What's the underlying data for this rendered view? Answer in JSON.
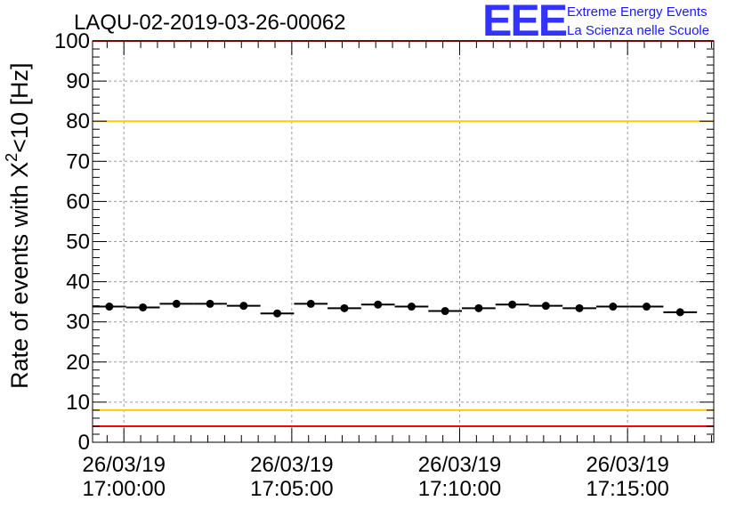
{
  "title": "LAQU-02-2019-03-26-00062",
  "logo": {
    "mark": "EEE",
    "line1": "Extreme Energy Events",
    "line2": "La Scienza nelle Scuole"
  },
  "colors": {
    "limit_red": "#ff0000",
    "limit_yellow": "#ffcc00",
    "logo_blue": "#3333ff",
    "grid": "#9a9a9a",
    "marker": "#000000"
  },
  "chart_data": {
    "type": "scatter",
    "title": "LAQU-02-2019-03-26-00062",
    "ylabel_prefix": "Rate of events with X",
    "ylabel_sup": "2",
    "ylabel_suffix": "<10 [Hz]",
    "ylim": [
      0,
      100
    ],
    "yticks": [
      "0",
      "10",
      "20",
      "30",
      "40",
      "50",
      "60",
      "70",
      "80",
      "90",
      "100"
    ],
    "xlim": [
      "2019-03-26 16:59:04",
      "2019-03-26 17:17:34"
    ],
    "xticks": [
      {
        "t": "2019-03-26 17:00:00",
        "date": "26/03/19",
        "time": "17:00:00"
      },
      {
        "t": "2019-03-26 17:05:00",
        "date": "26/03/19",
        "time": "17:05:00"
      },
      {
        "t": "2019-03-26 17:10:00",
        "date": "26/03/19",
        "time": "17:10:00"
      },
      {
        "t": "2019-03-26 17:15:00",
        "date": "26/03/19",
        "time": "17:15:00"
      }
    ],
    "grid": true,
    "bin_width_seconds": 60,
    "points": [
      {
        "t": "2019-03-26 16:59:34",
        "y": 33.8
      },
      {
        "t": "2019-03-26 17:00:34",
        "y": 33.6
      },
      {
        "t": "2019-03-26 17:01:34",
        "y": 34.5
      },
      {
        "t": "2019-03-26 17:02:34",
        "y": 34.5
      },
      {
        "t": "2019-03-26 17:03:34",
        "y": 34.0
      },
      {
        "t": "2019-03-26 17:04:34",
        "y": 32.1
      },
      {
        "t": "2019-03-26 17:05:34",
        "y": 34.5
      },
      {
        "t": "2019-03-26 17:06:34",
        "y": 33.4
      },
      {
        "t": "2019-03-26 17:07:34",
        "y": 34.3
      },
      {
        "t": "2019-03-26 17:08:34",
        "y": 33.8
      },
      {
        "t": "2019-03-26 17:09:34",
        "y": 32.7
      },
      {
        "t": "2019-03-26 17:10:34",
        "y": 33.4
      },
      {
        "t": "2019-03-26 17:11:34",
        "y": 34.3
      },
      {
        "t": "2019-03-26 17:12:34",
        "y": 34.0
      },
      {
        "t": "2019-03-26 17:13:34",
        "y": 33.4
      },
      {
        "t": "2019-03-26 17:14:34",
        "y": 33.8
      },
      {
        "t": "2019-03-26 17:15:34",
        "y": 33.8
      },
      {
        "t": "2019-03-26 17:16:34",
        "y": 32.4
      }
    ],
    "reference_lines": [
      {
        "y": 4,
        "color": "#ff0000"
      },
      {
        "y": 8,
        "color": "#ffcc00"
      },
      {
        "y": 80,
        "color": "#ffcc00"
      },
      {
        "y": 100,
        "color": "#ff0000"
      }
    ]
  }
}
